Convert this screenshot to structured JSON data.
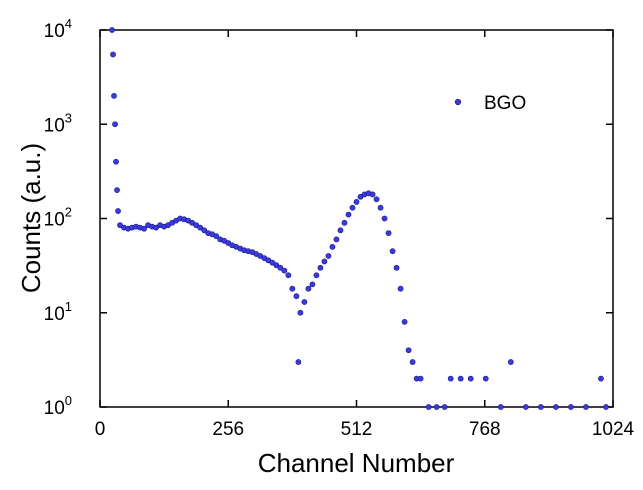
{
  "chart_data": {
    "type": "scatter",
    "x_label": "Channel Number",
    "y_label": "Counts (a.u.)",
    "xlim": [
      0,
      1024
    ],
    "xticks": [
      0,
      256,
      512,
      768,
      1024
    ],
    "ylim": [
      1,
      10000
    ],
    "log_y": true,
    "yticks": [
      {
        "value": 1,
        "label": "10",
        "exponent": "0"
      },
      {
        "value": 10,
        "label": "10",
        "exponent": "1"
      },
      {
        "value": 100,
        "label": "10",
        "exponent": "2"
      },
      {
        "value": 1000,
        "label": "10",
        "exponent": "3"
      },
      {
        "value": 10000,
        "label": "10",
        "exponent": "4"
      }
    ],
    "legend": "upper right",
    "series": [
      {
        "name": "BGO",
        "color": "#3a3adf",
        "x": [
          24,
          26,
          28,
          30,
          32,
          34,
          36,
          40,
          48,
          56,
          64,
          72,
          80,
          88,
          96,
          104,
          112,
          120,
          128,
          136,
          144,
          152,
          160,
          168,
          176,
          184,
          192,
          200,
          208,
          216,
          224,
          232,
          240,
          248,
          256,
          264,
          272,
          280,
          288,
          296,
          304,
          312,
          320,
          328,
          336,
          344,
          352,
          360,
          368,
          376,
          384,
          392,
          396,
          400,
          408,
          416,
          424,
          432,
          440,
          448,
          456,
          464,
          472,
          480,
          488,
          496,
          504,
          512,
          520,
          528,
          536,
          544,
          552,
          560,
          568,
          576,
          584,
          592,
          600,
          608,
          616,
          624,
          632,
          640,
          656,
          672,
          688,
          700,
          720,
          740,
          770,
          800,
          820,
          850,
          880,
          910,
          940,
          970,
          1000,
          1010
        ],
        "values": [
          10000,
          5500,
          2000,
          1000,
          400,
          200,
          120,
          85,
          80,
          78,
          80,
          82,
          80,
          78,
          85,
          82,
          80,
          85,
          82,
          85,
          90,
          95,
          100,
          98,
          95,
          90,
          85,
          80,
          75,
          70,
          68,
          65,
          60,
          58,
          55,
          52,
          50,
          48,
          46,
          45,
          44,
          42,
          40,
          38,
          36,
          34,
          32,
          30,
          28,
          25,
          18,
          15,
          3,
          10,
          13,
          18,
          20,
          25,
          30,
          35,
          40,
          50,
          60,
          75,
          90,
          110,
          130,
          150,
          170,
          180,
          185,
          180,
          160,
          130,
          100,
          70,
          45,
          30,
          18,
          8,
          4,
          3,
          2,
          2,
          1,
          1,
          1,
          2,
          2,
          2,
          2,
          1,
          3,
          1,
          1,
          1,
          1,
          1,
          2,
          1
        ]
      }
    ]
  }
}
